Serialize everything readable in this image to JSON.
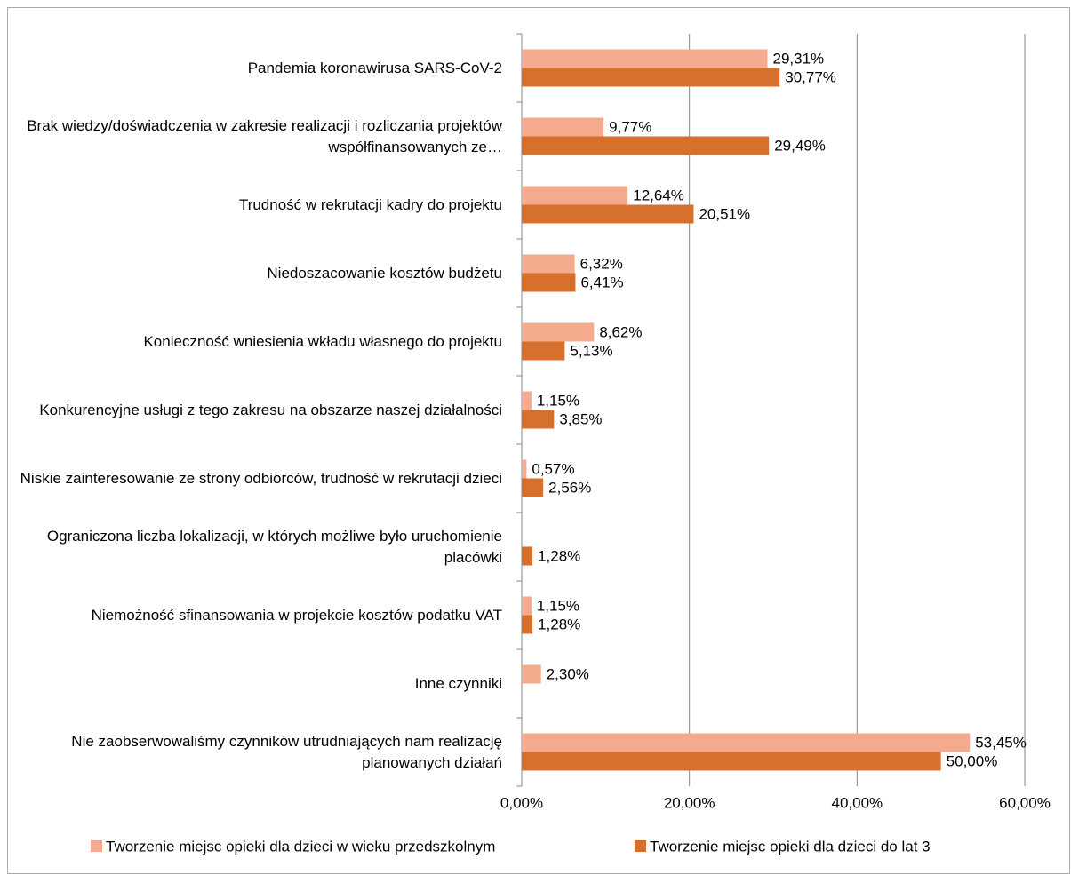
{
  "chart_data": {
    "type": "hbar",
    "categories": [
      "Pandemia koronawirusa SARS-CoV-2",
      "Brak wiedzy/doświadczenia w zakresie realizacji i rozliczania projektów współfinansowanych ze…",
      "Trudność w rekrutacji kadry do projektu",
      "Niedoszacowanie kosztów budżetu",
      "Konieczność wniesienia wkładu własnego do projektu",
      "Konkurencyjne usługi z tego zakresu na obszarze naszej działalności",
      "Niskie zainteresowanie ze strony odbiorców, trudność w rekrutacji dzieci",
      "Ograniczona liczba lokalizacji, w których możliwe było uruchomienie placówki",
      "Niemożność sfinansowania w projekcie kosztów podatku VAT",
      "Inne czynniki",
      "Nie zaobserwowaliśmy czynników utrudniających nam realizację planowanych działań"
    ],
    "series": [
      {
        "name": "Tworzenie miejsc opieki dla dzieci w wieku przedszkolnym",
        "color": "#f4aa8c",
        "values": [
          29.31,
          9.77,
          12.64,
          6.32,
          8.62,
          1.15,
          0.57,
          null,
          1.15,
          2.3,
          53.45
        ],
        "value_labels": [
          "29,31%",
          "9,77%",
          "12,64%",
          "6,32%",
          "8,62%",
          "1,15%",
          "0,57%",
          null,
          "1,15%",
          "2,30%",
          "53,45%"
        ]
      },
      {
        "name": "Tworzenie miejsc opieki dla dzieci do lat 3",
        "color": "#d6702c",
        "values": [
          30.77,
          29.49,
          20.51,
          6.41,
          5.13,
          3.85,
          2.56,
          1.28,
          1.28,
          null,
          50.0
        ],
        "value_labels": [
          "30,77%",
          "29,49%",
          "20,51%",
          "6,41%",
          "5,13%",
          "3,85%",
          "2,56%",
          "1,28%",
          "1,28%",
          null,
          "50,00%"
        ]
      }
    ],
    "xlim": [
      0,
      60
    ],
    "xticks": [
      {
        "value": 0,
        "label": "0,00%"
      },
      {
        "value": 20,
        "label": "20,00%"
      },
      {
        "value": 40,
        "label": "40,00%"
      },
      {
        "value": 60,
        "label": "60,00%"
      }
    ],
    "grid": true,
    "legend": "bottom"
  }
}
